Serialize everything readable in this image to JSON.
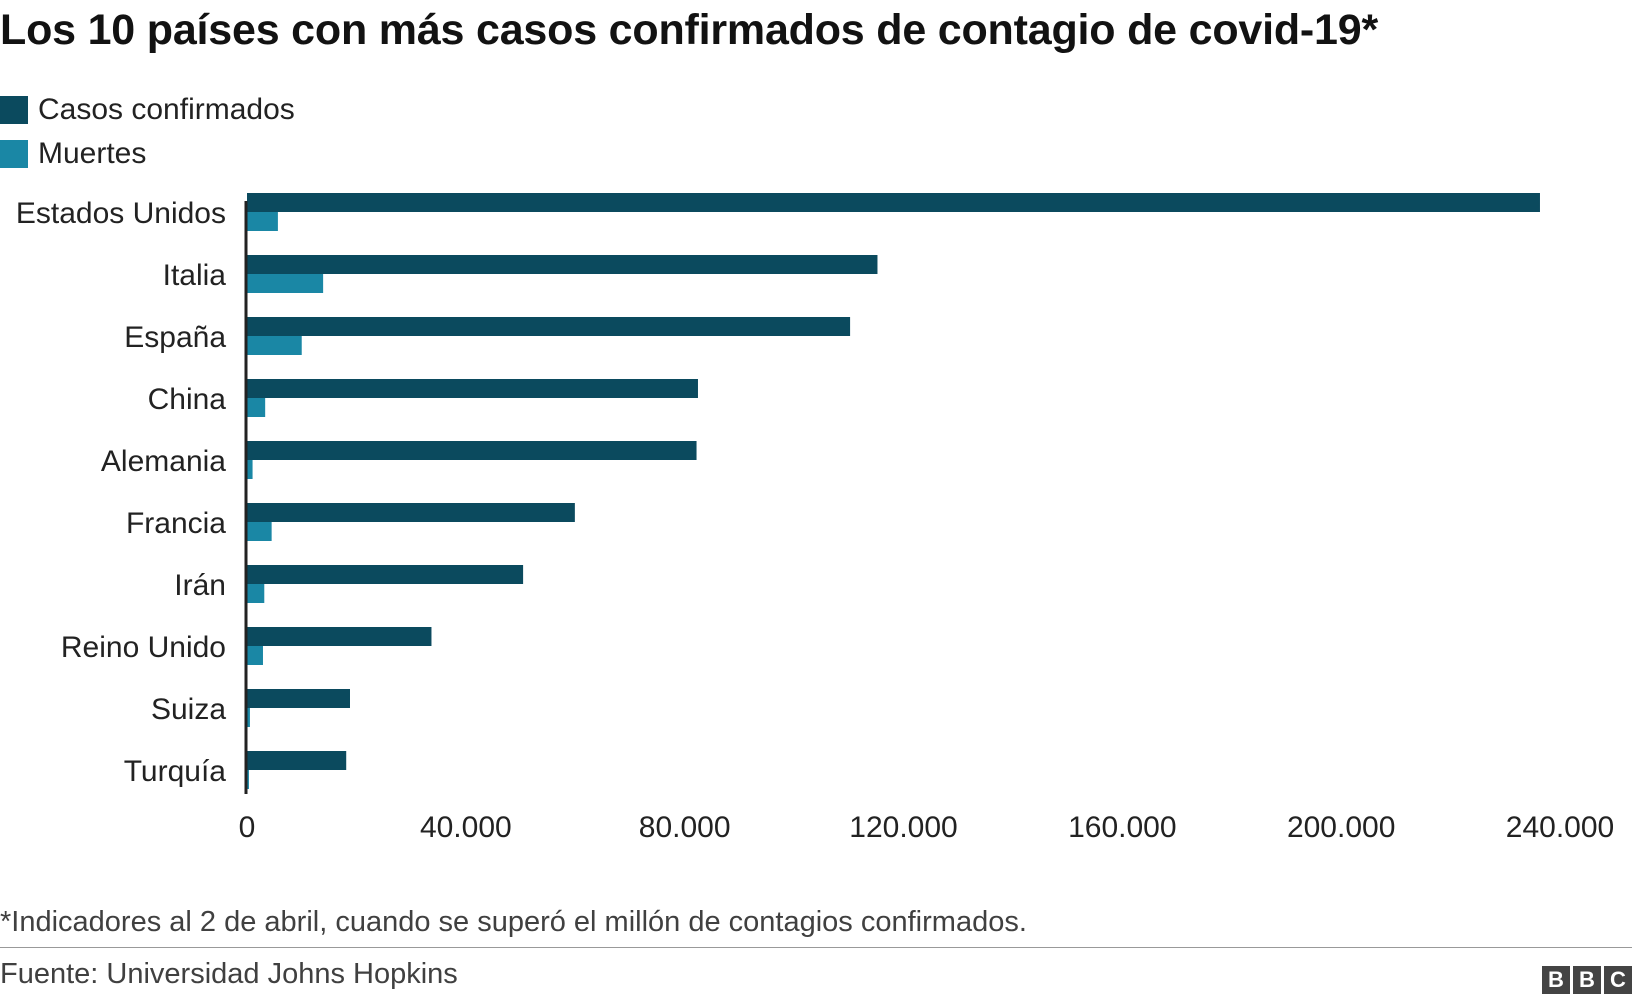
{
  "title": "Los 10 países con más casos confirmados de contagio de covid-19*",
  "legend": {
    "confirmed": "Casos confirmados",
    "deaths": "Muertes"
  },
  "colors": {
    "confirmed": "#0b4a5e",
    "deaths": "#1a87a5",
    "axis": "#222222"
  },
  "chart_data": {
    "type": "bar",
    "orientation": "horizontal",
    "categories": [
      "Estados Unidos",
      "Italia",
      "España",
      "China",
      "Alemania",
      "Francia",
      "Irán",
      "Reino Unido",
      "Suiza",
      "Turquía"
    ],
    "series": [
      {
        "name": "Casos confirmados",
        "values": [
          236339,
          115242,
          110238,
          82432,
          82170,
          59929,
          50468,
          33718,
          18827,
          18135
        ]
      },
      {
        "name": "Muertes",
        "values": [
          5648,
          13915,
          10003,
          3322,
          1017,
          4503,
          3160,
          2921,
          536,
          356
        ]
      }
    ],
    "xlim": [
      0,
      240000
    ],
    "xticks": [
      0,
      40000,
      80000,
      120000,
      160000,
      200000,
      240000
    ],
    "xtick_labels": [
      "0",
      "40.000",
      "80.000",
      "120.000",
      "160.000",
      "200.000",
      "240.000"
    ],
    "xlabel": "",
    "ylabel": ""
  },
  "footnote": "*Indicadores al 2 de abril, cuando se superó el millón de contagios confirmados.",
  "source": "Fuente: Universidad Johns Hopkins",
  "logo": [
    "B",
    "B",
    "C"
  ]
}
